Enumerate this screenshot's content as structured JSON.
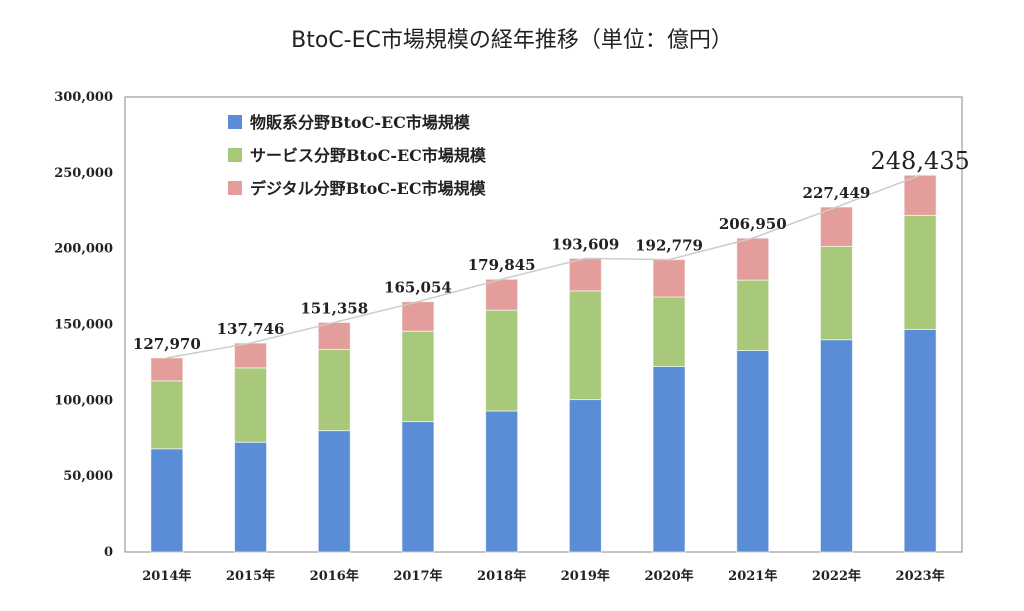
{
  "title": "BtoC-EC市場規模の経年推移（単位：億円）",
  "colors": {
    "goods": "#5b8dd6",
    "services": "#a9c97a",
    "digital": "#e39d9a",
    "line": "#cccccc",
    "axis": "#444444"
  },
  "chart_data": {
    "type": "bar",
    "stacked": true,
    "title": "BtoC-EC市場規模の経年推移（単位：億円）",
    "categories": [
      "2014年",
      "2015年",
      "2016年",
      "2017年",
      "2018年",
      "2019年",
      "2020年",
      "2021年",
      "2022年",
      "2023年"
    ],
    "series": [
      {
        "name": "物販系分野BtoC-EC市場規模",
        "color": "#5b8dd6",
        "values": [
          68043,
          72398,
          80043,
          86008,
          92992,
          100515,
          122333,
          132865,
          139997,
          146760
        ]
      },
      {
        "name": "サービス分野BtoC-EC市場規模",
        "color": "#a9c97a",
        "values": [
          44816,
          49014,
          53532,
          59568,
          66471,
          71672,
          45832,
          46424,
          61477,
          75169
        ]
      },
      {
        "name": "デジタル分野BtoC-EC市場規模",
        "color": "#e39d9a",
        "values": [
          15111,
          16334,
          17782,
          19478,
          20382,
          21422,
          24614,
          27661,
          25974,
          26506
        ]
      }
    ],
    "totals": [
      "127,970",
      "137,746",
      "151,358",
      "165,054",
      "179,845",
      "193,609",
      "192,779",
      "206,950",
      "227,449",
      "248,435"
    ],
    "totals_values": [
      127970,
      137746,
      151358,
      165054,
      179845,
      193609,
      192779,
      206950,
      227449,
      248435
    ],
    "ylim": [
      0,
      300000
    ],
    "yticks": [
      0,
      50000,
      100000,
      150000,
      200000,
      250000,
      300000
    ],
    "ytick_labels": [
      "0",
      "50,000",
      "100,000",
      "150,000",
      "200,000",
      "250,000",
      "300,000"
    ],
    "xlabel": "",
    "ylabel": "",
    "legend_position": "top-left",
    "grid": false,
    "total_line": true
  }
}
